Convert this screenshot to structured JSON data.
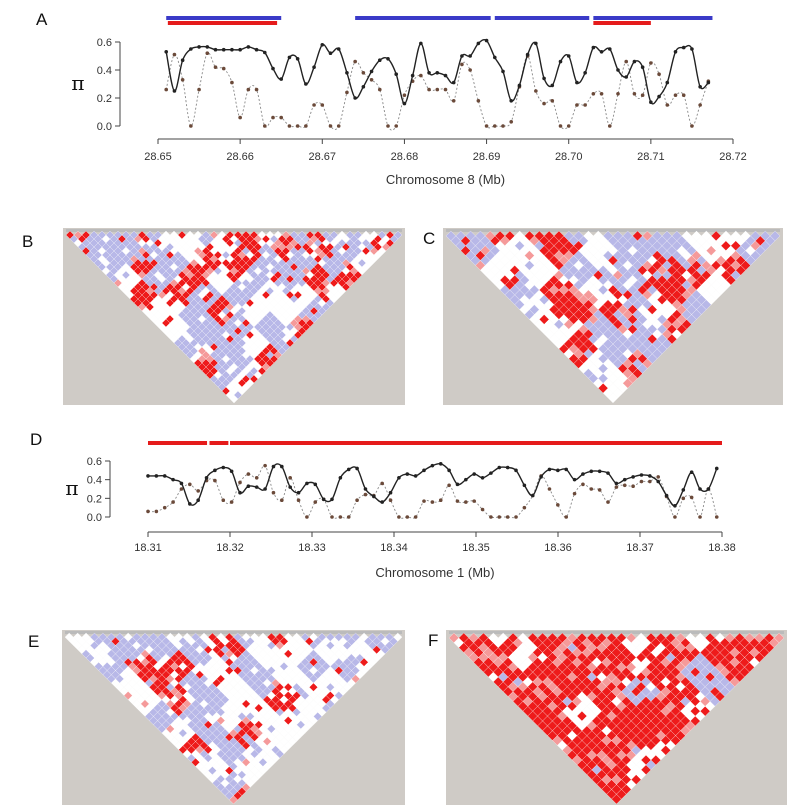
{
  "panel_labels": [
    "A",
    "B",
    "C",
    "D",
    "E",
    "F"
  ],
  "colors": {
    "solid": "#222222",
    "dotted": "#888888",
    "point": "#333333",
    "blue_bar": "#3a3ac8",
    "red_bar": "#e51b1b",
    "ld_red": "#ee1b1b",
    "ld_pink": "#f59a9a",
    "ld_blue": "#b8b8e8",
    "ld_white": "#ffffff",
    "ld_bg": "#cfcbc6"
  },
  "chart_data": [
    {
      "panel": "A",
      "type": "line",
      "xlabel": "Chromosome 8 (Mb)",
      "ylabel": "π",
      "xlim": [
        28.65,
        28.72
      ],
      "ylim": [
        0,
        0.6
      ],
      "xticks": [
        "28.65",
        "28.66",
        "28.67",
        "28.68",
        "28.69",
        "28.70",
        "28.71",
        "28.72"
      ],
      "yticks": [
        "0.0",
        "0.2",
        "0.4",
        "0.6"
      ],
      "x_start": 28.651,
      "x_step": 0.001,
      "series": [
        {
          "style": "solid",
          "values": [
            0.53,
            0.25,
            0.47,
            0.55,
            0.565,
            0.565,
            0.545,
            0.545,
            0.545,
            0.545,
            0.565,
            0.545,
            0.525,
            0.41,
            0.335,
            0.49,
            0.48,
            0.3,
            0.42,
            0.58,
            0.52,
            0.55,
            0.38,
            0.2,
            0.28,
            0.39,
            0.47,
            0.48,
            0.37,
            0.16,
            0.36,
            0.59,
            0.38,
            0.38,
            0.36,
            0.31,
            0.5,
            0.5,
            0.59,
            0.61,
            0.49,
            0.39,
            0.18,
            0.29,
            0.51,
            0.59,
            0.34,
            0.29,
            0.46,
            0.5,
            0.31,
            0.38,
            0.56,
            0.53,
            0.55,
            0.4,
            0.35,
            0.46,
            0.42,
            0.17,
            0.21,
            0.31,
            0.53,
            0.56,
            0.55,
            0.28,
            0.31
          ]
        },
        {
          "style": "dotted",
          "values": [
            0.26,
            0.51,
            0.33,
            0,
            0.26,
            0.52,
            0.42,
            0.41,
            0.31,
            0.06,
            0.26,
            0.26,
            0,
            0.06,
            0.06,
            0,
            0,
            0,
            0.15,
            0.15,
            0,
            0,
            0.24,
            0.46,
            0.38,
            0.33,
            0.26,
            0,
            0,
            0.22,
            0.32,
            0.36,
            0.26,
            0.26,
            0.26,
            0.18,
            0.44,
            0.4,
            0.18,
            0,
            0,
            0,
            0.03,
            0.28,
            0.5,
            0.25,
            0.16,
            0.18,
            0,
            0,
            0.15,
            0.15,
            0.23,
            0.23,
            0,
            0.23,
            0.46,
            0.23,
            0.22,
            0.45,
            0.37,
            0.15,
            0.22,
            0.22,
            0,
            0.15,
            0.32
          ]
        }
      ],
      "bars": [
        {
          "color": "blue",
          "start": 28.651,
          "end": 28.665
        },
        {
          "color": "blue",
          "start": 28.674,
          "end": 28.6905
        },
        {
          "color": "blue",
          "start": 28.691,
          "end": 28.7025
        },
        {
          "color": "blue",
          "start": 28.703,
          "end": 28.7175
        },
        {
          "color": "red",
          "start": 28.6512,
          "end": 28.6645
        },
        {
          "color": "red",
          "start": 28.703,
          "end": 28.71
        }
      ]
    },
    {
      "panel": "D",
      "type": "line",
      "xlabel": "Chromosome 1 (Mb)",
      "ylabel": "π",
      "xlim": [
        18.31,
        18.38
      ],
      "ylim": [
        0,
        0.6
      ],
      "xticks": [
        "18.31",
        "18.32",
        "18.33",
        "18.34",
        "18.35",
        "18.36",
        "18.37",
        "18.38"
      ],
      "yticks": [
        "0.0",
        "0.2",
        "0.4",
        "0.6"
      ],
      "x_start": 18.31,
      "x_step": 0.00102,
      "series": [
        {
          "style": "solid",
          "values": [
            0.44,
            0.44,
            0.44,
            0.4,
            0.36,
            0.14,
            0.18,
            0.42,
            0.5,
            0.53,
            0.49,
            0.26,
            0.33,
            0.32,
            0.3,
            0.54,
            0.54,
            0.32,
            0.26,
            0.36,
            0.35,
            0.19,
            0.19,
            0.42,
            0.51,
            0.52,
            0.3,
            0.22,
            0.16,
            0.26,
            0.42,
            0.46,
            0.44,
            0.5,
            0.55,
            0.57,
            0.5,
            0.35,
            0.4,
            0.46,
            0.42,
            0.47,
            0.53,
            0.53,
            0.5,
            0.34,
            0.23,
            0.43,
            0.51,
            0.5,
            0.51,
            0.4,
            0.46,
            0.49,
            0.49,
            0.47,
            0.36,
            0.4,
            0.43,
            0.45,
            0.44,
            0.38,
            0.23,
            0.12,
            0.29,
            0.48,
            0.3,
            0.3,
            0.52
          ]
        },
        {
          "style": "dotted",
          "values": [
            0.06,
            0.06,
            0.1,
            0.16,
            0.3,
            0.35,
            0.28,
            0.39,
            0.39,
            0.18,
            0.16,
            0.37,
            0.46,
            0.42,
            0.55,
            0.26,
            0.18,
            0.42,
            0.18,
            0,
            0.16,
            0.19,
            0,
            0,
            0,
            0.18,
            0.24,
            0.23,
            0.36,
            0.18,
            0,
            0,
            0,
            0.17,
            0.16,
            0.18,
            0.34,
            0.17,
            0.16,
            0.17,
            0.08,
            0,
            0,
            0,
            0,
            0.1,
            0.23,
            0.44,
            0.3,
            0.13,
            0,
            0.25,
            0.35,
            0.3,
            0.29,
            0.16,
            0.32,
            0.34,
            0.33,
            0.38,
            0.38,
            0.43,
            0.22,
            0,
            0.2,
            0.21,
            0,
            0.3,
            0
          ]
        }
      ],
      "bars": [
        {
          "color": "red",
          "start": 18.31,
          "end": 18.3172
        },
        {
          "color": "red",
          "start": 18.3175,
          "end": 18.3198
        },
        {
          "color": "red",
          "start": 18.32,
          "end": 18.38
        }
      ]
    },
    {
      "panel": "B",
      "type": "heatmap",
      "markers": 42,
      "red_fraction": 0.35,
      "blue_fraction": 0.35
    },
    {
      "panel": "C",
      "type": "heatmap",
      "markers": 34,
      "red_fraction": 0.4,
      "blue_fraction": 0.35
    },
    {
      "panel": "E",
      "type": "heatmap",
      "markers": 40,
      "red_fraction": 0.2,
      "blue_fraction": 0.4
    },
    {
      "panel": "F",
      "type": "heatmap",
      "markers": 34,
      "red_fraction": 0.8,
      "blue_fraction": 0.05
    }
  ]
}
